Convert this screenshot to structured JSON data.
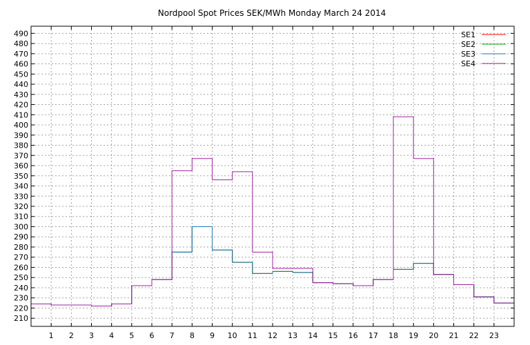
{
  "chart_data": {
    "type": "line",
    "title": "Nordpool Spot Prices SEK/MWh Monday March 24 2014",
    "xlabel": "",
    "ylabel": "",
    "x_ticks": [
      "1",
      "2",
      "3",
      "4",
      "5",
      "6",
      "7",
      "8",
      "9",
      "10",
      "11",
      "12",
      "13",
      "14",
      "15",
      "16",
      "17",
      "18",
      "19",
      "20",
      "21",
      "22",
      "23"
    ],
    "y_ticks": [
      210,
      220,
      230,
      240,
      250,
      260,
      270,
      280,
      290,
      300,
      310,
      320,
      330,
      340,
      350,
      360,
      370,
      380,
      390,
      400,
      410,
      420,
      430,
      440,
      450,
      460,
      470,
      480,
      490
    ],
    "xlim": [
      0,
      24
    ],
    "ylim": [
      202,
      497
    ],
    "grid": true,
    "legend_position": "top-right",
    "step": true,
    "x": [
      0,
      1,
      2,
      3,
      4,
      5,
      6,
      7,
      8,
      9,
      10,
      11,
      12,
      13,
      14,
      15,
      16,
      17,
      18,
      19,
      20,
      21,
      22,
      23
    ],
    "series": [
      {
        "name": "SE1",
        "color": "#ff0000",
        "values": [
          224,
          223,
          223,
          222,
          224,
          242,
          248,
          275,
          300,
          277,
          265,
          254,
          256,
          255,
          245,
          244,
          242,
          248,
          258,
          264,
          253,
          243,
          231,
          225
        ]
      },
      {
        "name": "SE2",
        "color": "#00aa00",
        "values": [
          224,
          223,
          223,
          222,
          224,
          242,
          248,
          275,
          300,
          277,
          265,
          254,
          256,
          255,
          245,
          244,
          242,
          248,
          258,
          264,
          253,
          243,
          231,
          225
        ]
      },
      {
        "name": "SE3",
        "color": "#1f78b4",
        "values": [
          224,
          223,
          223,
          222,
          224,
          242,
          248,
          275,
          300,
          277,
          265,
          254,
          256,
          255,
          245,
          244,
          242,
          248,
          258,
          264,
          253,
          243,
          231,
          225
        ]
      },
      {
        "name": "SE4",
        "color": "#a020a0",
        "values": [
          224,
          223,
          223,
          222,
          224,
          242,
          248,
          355,
          367,
          346,
          354,
          275,
          259,
          259,
          245,
          244,
          242,
          248,
          408,
          367,
          253,
          243,
          231,
          225
        ]
      }
    ]
  }
}
